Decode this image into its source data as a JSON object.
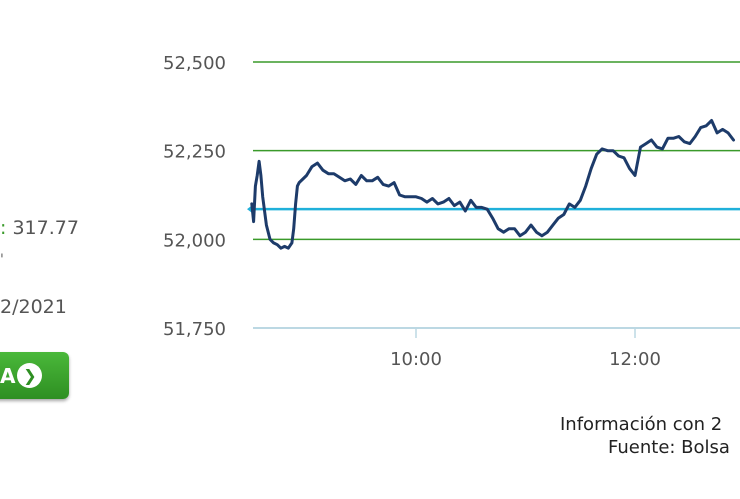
{
  "left_panel": {
    "change_label": ":",
    "change_value": "317.77",
    "mark": "'",
    "date": "2/2021",
    "button_label": "A"
  },
  "footer": {
    "line1": "Información con 2",
    "line2": "Fuente: Bolsa"
  },
  "colors": {
    "series": "#1d3b6a",
    "reference": "#1fb0da",
    "gridline": "#3a9a2a",
    "button": "#3aa22e"
  },
  "chart_data": {
    "type": "line",
    "title": "",
    "xlabel": "",
    "ylabel": "",
    "ylim": [
      51750,
      52500
    ],
    "yticks": [
      "52,500",
      "52,250",
      "52,000",
      "51,750"
    ],
    "ytick_values": [
      52500,
      52250,
      52000,
      51750
    ],
    "xticks": [
      "10:00",
      "12:00"
    ],
    "xtick_minutes": [
      600,
      720
    ],
    "reference_line": 52085,
    "series": [
      {
        "x": [
          510,
          511,
          512,
          513,
          514,
          515,
          516,
          518,
          520,
          522,
          524,
          526,
          528,
          530,
          532,
          533,
          534,
          535,
          536,
          538,
          540,
          543,
          546,
          549,
          552,
          555,
          558,
          561,
          564,
          567,
          570,
          573,
          576,
          579,
          582,
          585,
          588,
          591,
          594,
          597,
          600,
          603,
          606,
          609,
          612,
          615,
          618,
          621,
          624,
          627,
          630,
          633,
          636,
          639,
          642,
          645,
          648,
          651,
          654,
          657,
          660,
          663,
          666,
          669,
          672,
          675,
          678,
          681,
          684,
          687,
          690,
          693,
          696,
          699,
          702,
          705,
          708,
          711,
          714,
          717,
          720,
          723,
          726,
          729,
          732,
          735,
          738,
          741,
          744,
          747,
          750,
          753,
          756,
          759,
          762,
          765,
          768,
          771,
          774
        ],
        "values": [
          52100,
          52050,
          52150,
          52180,
          52220,
          52180,
          52120,
          52040,
          52000,
          51990,
          51985,
          51975,
          51980,
          51975,
          51990,
          52030,
          52100,
          52150,
          52160,
          52170,
          52180,
          52205,
          52215,
          52195,
          52185,
          52185,
          52175,
          52165,
          52170,
          52155,
          52180,
          52165,
          52165,
          52175,
          52155,
          52150,
          52160,
          52125,
          52120,
          52120,
          52120,
          52115,
          52105,
          52115,
          52100,
          52105,
          52115,
          52095,
          52105,
          52080,
          52110,
          52090,
          52090,
          52085,
          52060,
          52030,
          52020,
          52030,
          52030,
          52010,
          52020,
          52040,
          52020,
          52010,
          52020,
          52040,
          52060,
          52070,
          52100,
          52090,
          52110,
          52150,
          52200,
          52240,
          52255,
          52250,
          52250,
          52235,
          52230,
          52200,
          52180,
          52260,
          52270,
          52280,
          52260,
          52255,
          52285,
          52285,
          52290,
          52275,
          52270,
          52290,
          52315,
          52320,
          52335,
          52300,
          52310,
          52300,
          52280
        ]
      }
    ]
  }
}
